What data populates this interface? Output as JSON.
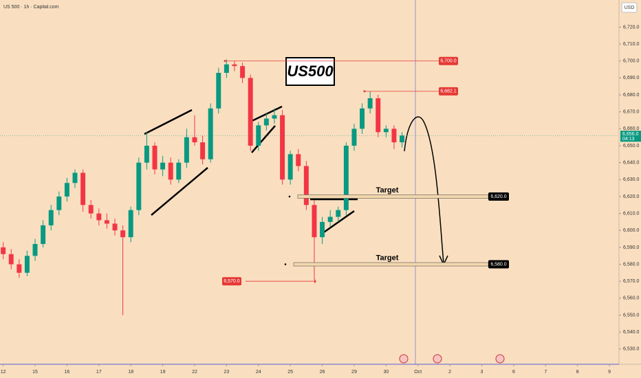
{
  "chart_data": {
    "type": "candlestick",
    "title": "US 500 · 1h · Capital.com",
    "currency": "USD",
    "symbol_box": "US500",
    "up_color": "#089981",
    "down_color": "#f23645",
    "xlim": [
      -0.1,
      19.3
    ],
    "xticks": [
      {
        "value": 0,
        "label": "12"
      },
      {
        "value": 1,
        "label": "15"
      },
      {
        "value": 2,
        "label": "16"
      },
      {
        "value": 3,
        "label": "17"
      },
      {
        "value": 4,
        "label": "18"
      },
      {
        "value": 5,
        "label": "19"
      },
      {
        "value": 6,
        "label": "22"
      },
      {
        "value": 7,
        "label": "23"
      },
      {
        "value": 8,
        "label": "24"
      },
      {
        "value": 9,
        "label": "25"
      },
      {
        "value": 10,
        "label": "26"
      },
      {
        "value": 11,
        "label": "29"
      },
      {
        "value": 12,
        "label": "30"
      },
      {
        "value": 13,
        "label": "Oct"
      },
      {
        "value": 14,
        "label": "2"
      },
      {
        "value": 15,
        "label": "3"
      },
      {
        "value": 16,
        "label": "6"
      },
      {
        "value": 17,
        "label": "7"
      },
      {
        "value": 18,
        "label": "8"
      },
      {
        "value": 19,
        "label": "9"
      }
    ],
    "ylim": [
      6521,
      6736
    ],
    "yticks": [
      {
        "value": 6720,
        "label": "6,720.0"
      },
      {
        "value": 6710,
        "label": "6,710.0"
      },
      {
        "value": 6700,
        "label": "6,700.0"
      },
      {
        "value": 6690,
        "label": "6,690.0"
      },
      {
        "value": 6680,
        "label": "6,680.0"
      },
      {
        "value": 6670,
        "label": "6,670.0"
      },
      {
        "value": 6660,
        "label": "6,660.0"
      },
      {
        "value": 6650,
        "label": "6,650.0"
      },
      {
        "value": 6640,
        "label": "6,640.0"
      },
      {
        "value": 6630,
        "label": "6,630.0"
      },
      {
        "value": 6620,
        "label": "6,620.0"
      },
      {
        "value": 6610,
        "label": "6,610.0"
      },
      {
        "value": 6600,
        "label": "6,600.0"
      },
      {
        "value": 6590,
        "label": "6,590.0"
      },
      {
        "value": 6580,
        "label": "6,580.0"
      },
      {
        "value": 6570,
        "label": "6,570.0"
      },
      {
        "value": 6560,
        "label": "6,560.0"
      },
      {
        "value": 6550,
        "label": "6,550.0"
      },
      {
        "value": 6540,
        "label": "6,540.0"
      },
      {
        "value": 6530,
        "label": "6,530.0"
      }
    ],
    "x": [
      0,
      0.25,
      0.5,
      0.75,
      1,
      1.25,
      1.5,
      1.75,
      2,
      2.25,
      2.5,
      2.75,
      3,
      3.25,
      3.5,
      3.75,
      4,
      4.25,
      4.5,
      4.75,
      5,
      5.25,
      5.5,
      5.75,
      6,
      6.25,
      6.5,
      6.75,
      7,
      7.25,
      7.5,
      7.75,
      8,
      8.25,
      8.5,
      8.75,
      9,
      9.25,
      9.5,
      9.75,
      10,
      10.25,
      10.5,
      10.75,
      11,
      11.25,
      11.5,
      11.75,
      12,
      12.25,
      12.5
    ],
    "open": [
      6590,
      6586,
      6580,
      6575,
      6585,
      6592,
      6603,
      6612,
      6620,
      6628,
      6634,
      6615,
      6610,
      6606,
      6604,
      6600,
      6596,
      6612,
      6640,
      6650,
      6636,
      6640,
      6630,
      6640,
      6655,
      6652,
      6642,
      6672,
      6693,
      6698,
      6697,
      6690,
      6650,
      6662,
      6666,
      6668,
      6630,
      6645,
      6638,
      6615,
      6596,
      6605,
      6608,
      6612,
      6650,
      6660,
      6672,
      6678,
      6658,
      6660,
      6652
    ],
    "high": [
      6593,
      6589,
      6583,
      6588,
      6595,
      6606,
      6615,
      6623,
      6631,
      6636,
      6636,
      6618,
      6613,
      6610,
      6607,
      6603,
      6614,
      6643,
      6658,
      6652,
      6644,
      6643,
      6642,
      6660,
      6668,
      6656,
      6675,
      6696,
      6701,
      6700,
      6699,
      6692,
      6664,
      6669,
      6672,
      6671,
      6647,
      6648,
      6641,
      6618,
      6608,
      6612,
      6614,
      6652,
      6663,
      6675,
      6682,
      6680,
      6662,
      6662,
      6658
    ],
    "low": [
      6583,
      6577,
      6572,
      6573,
      6582,
      6590,
      6600,
      6609,
      6617,
      6625,
      6611,
      6607,
      6603,
      6601,
      6597,
      6550,
      6593,
      6609,
      6636,
      6633,
      6632,
      6627,
      6628,
      6637,
      6650,
      6639,
      6640,
      6669,
      6690,
      6694,
      6687,
      6647,
      6647,
      6659,
      6663,
      6627,
      6627,
      6635,
      6612,
      6571,
      6592,
      6602,
      6605,
      6609,
      6647,
      6657,
      6669,
      6655,
      6655,
      6648,
      6649
    ],
    "close": [
      6586,
      6580,
      6575,
      6585,
      6592,
      6603,
      6612,
      6620,
      6628,
      6634,
      6615,
      6610,
      6606,
      6604,
      6600,
      6596,
      6612,
      6640,
      6650,
      6636,
      6640,
      6630,
      6640,
      6655,
      6652,
      6642,
      6672,
      6693,
      6698,
      6697,
      6690,
      6650,
      6662,
      6666,
      6668,
      6630,
      6645,
      6638,
      6615,
      6596,
      6605,
      6608,
      6612,
      6650,
      6660,
      6672,
      6678,
      6658,
      6660,
      6652,
      6656
    ],
    "levels": [
      {
        "value": 6700,
        "label": "6,700.0",
        "color": "#e53935"
      },
      {
        "value": 6682.1,
        "label": "6,682.1",
        "color": "#e53935"
      },
      {
        "value": 6570,
        "label": "6,570.0",
        "color": "#e53935"
      }
    ],
    "targets": [
      {
        "value": 6620,
        "label": "6,620.0",
        "text": "Target"
      },
      {
        "value": 6580,
        "label": "6,580.0",
        "text": "Target"
      }
    ],
    "last_price": {
      "value": 6656,
      "label": "6,656.0",
      "countdown": "04:13",
      "color": "#089981"
    }
  }
}
